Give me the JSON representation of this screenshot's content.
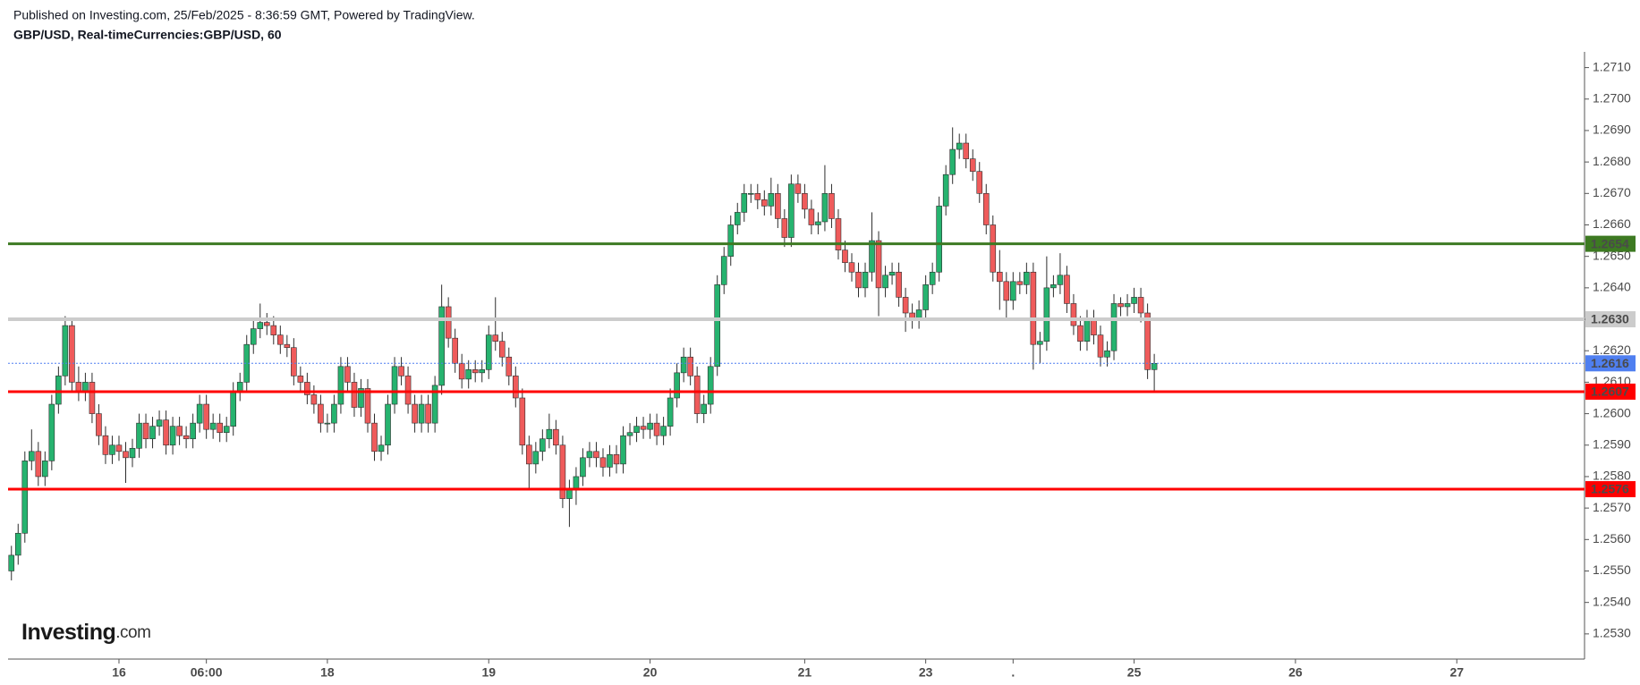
{
  "chart_data": {
    "type": "candlestick",
    "publisher": "Published on Investing.com, 25/Feb/2025 - 8:36:59 GMT, Powered by TradingView.",
    "title": "GBP/USD, Real-timeCurrencies:GBP/USD, 60",
    "logo": {
      "brand": "Investing",
      "suffix": ".com"
    },
    "up_color": "#26b36f",
    "down_color": "#ef5b5b",
    "open": [
      1.255,
      1.2555,
      1.2562,
      1.2585,
      1.2588,
      1.258,
      1.2585,
      1.2603,
      1.2612,
      1.2628,
      1.261,
      1.2607,
      1.261,
      1.26,
      1.2593,
      1.2587,
      1.259,
      1.2588,
      1.2586,
      1.2589,
      1.2597,
      1.2592,
      1.2596,
      1.2598,
      1.259,
      1.2596,
      1.2593,
      1.2592,
      1.2597,
      1.2603,
      1.2595,
      1.2597,
      1.2594,
      1.2596,
      1.2607,
      1.261,
      1.2622,
      1.2627,
      1.2629,
      1.2628,
      1.2625,
      1.2622,
      1.2621,
      1.2612,
      1.261,
      1.2606,
      1.2603,
      1.2597,
      1.2597,
      1.2603,
      1.2615,
      1.261,
      1.2602,
      1.2608,
      1.2597,
      1.2588,
      1.259,
      1.2603,
      1.2615,
      1.2612,
      1.2603,
      1.2597,
      1.2603,
      1.2597,
      1.2609,
      1.2634,
      1.2624,
      1.2616,
      1.2611,
      1.2614,
      1.2613,
      1.2614,
      1.2625,
      1.2623,
      1.2618,
      1.2612,
      1.2605,
      1.259,
      1.2584,
      1.2588,
      1.2592,
      1.2595,
      1.259,
      1.2573,
      1.2576,
      1.258,
      1.2586,
      1.2588,
      1.2586,
      1.2583,
      1.2587,
      1.2584,
      1.2593,
      1.2594,
      1.2596,
      1.2595,
      1.2597,
      1.2593,
      1.2596,
      1.2605,
      1.2613,
      1.2618,
      1.2612,
      1.26,
      1.2603,
      1.2615,
      1.2641,
      1.265,
      1.266,
      1.2664,
      1.267,
      1.267,
      1.2668,
      1.2666,
      1.267,
      1.2662,
      1.2656,
      1.2673,
      1.267,
      1.2665,
      1.266,
      1.2661,
      1.267,
      1.2662,
      1.2652,
      1.2648,
      1.2645,
      1.264,
      1.2645,
      1.2655,
      1.264,
      1.2644,
      1.2645,
      1.2637,
      1.2632,
      1.263,
      1.2633,
      1.2641,
      1.2645,
      1.2666,
      1.2676,
      1.2684,
      1.2686,
      1.2681,
      1.2677,
      1.267,
      1.266,
      1.2645,
      1.2642,
      1.2636,
      1.2642,
      1.2641,
      1.2645,
      1.2622,
      1.2623,
      1.264,
      1.2641,
      1.2644,
      1.2635,
      1.2628,
      1.2623,
      1.263,
      1.2625,
      1.2618,
      1.262,
      1.2635,
      1.2634,
      1.2635,
      1.2637,
      1.2632,
      1.2614
    ],
    "high": [
      1.2558,
      1.2565,
      1.2588,
      1.2595,
      1.2591,
      1.2588,
      1.2606,
      1.2615,
      1.2631,
      1.263,
      1.2615,
      1.2613,
      1.2613,
      1.2603,
      1.2596,
      1.2593,
      1.2593,
      1.2591,
      1.2592,
      1.26,
      1.26,
      1.2599,
      1.2601,
      1.2601,
      1.2599,
      1.2599,
      1.2596,
      1.26,
      1.2606,
      1.2606,
      1.26,
      1.26,
      1.2599,
      1.261,
      1.2613,
      1.2625,
      1.263,
      1.2635,
      1.2632,
      1.2631,
      1.2628,
      1.2625,
      1.2624,
      1.2615,
      1.2613,
      1.2609,
      1.2606,
      1.26,
      1.2606,
      1.2618,
      1.2618,
      1.2613,
      1.2611,
      1.2611,
      1.26,
      1.2593,
      1.2606,
      1.2618,
      1.2618,
      1.2615,
      1.2606,
      1.2606,
      1.2606,
      1.2612,
      1.2641,
      1.2637,
      1.2627,
      1.2619,
      1.2617,
      1.2617,
      1.2617,
      1.2628,
      1.2637,
      1.2626,
      1.2621,
      1.2615,
      1.2608,
      1.2593,
      1.2591,
      1.2595,
      1.26,
      1.2598,
      1.2593,
      1.2579,
      1.2583,
      1.2589,
      1.2591,
      1.2591,
      1.2589,
      1.259,
      1.259,
      1.2596,
      1.2597,
      1.2599,
      1.2599,
      1.26,
      1.26,
      1.2599,
      1.2608,
      1.2616,
      1.2621,
      1.2621,
      1.2615,
      1.2606,
      1.2618,
      1.2644,
      1.2653,
      1.2663,
      1.2667,
      1.2673,
      1.2673,
      1.2673,
      1.2671,
      1.2675,
      1.2673,
      1.2665,
      1.2676,
      1.2676,
      1.2673,
      1.2668,
      1.2664,
      1.2679,
      1.2673,
      1.2665,
      1.2655,
      1.2651,
      1.2648,
      1.2648,
      1.2664,
      1.2658,
      1.2647,
      1.2648,
      1.2648,
      1.264,
      1.2635,
      1.2636,
      1.2644,
      1.2648,
      1.2669,
      1.2679,
      1.2691,
      1.2689,
      1.2689,
      1.2684,
      1.268,
      1.2673,
      1.2663,
      1.2652,
      1.2645,
      1.2645,
      1.2645,
      1.2648,
      1.2648,
      1.2626,
      1.265,
      1.2644,
      1.2651,
      1.2647,
      1.2638,
      1.2631,
      1.2633,
      1.2633,
      1.2628,
      1.2623,
      1.2638,
      1.2637,
      1.2638,
      1.264,
      1.264,
      1.2635,
      1.2619
    ],
    "low": [
      1.2547,
      1.2552,
      1.2559,
      1.2582,
      1.2577,
      1.2577,
      1.2582,
      1.26,
      1.2609,
      1.2607,
      1.2604,
      1.2604,
      1.2597,
      1.259,
      1.2584,
      1.2584,
      1.2585,
      1.2578,
      1.2583,
      1.2586,
      1.2589,
      1.2589,
      1.2593,
      1.2587,
      1.2587,
      1.259,
      1.2589,
      1.2589,
      1.2594,
      1.2592,
      1.2592,
      1.2591,
      1.2591,
      1.2593,
      1.2604,
      1.2607,
      1.2619,
      1.2624,
      1.2625,
      1.2622,
      1.2619,
      1.2618,
      1.2609,
      1.2607,
      1.2603,
      1.26,
      1.2594,
      1.2594,
      1.2594,
      1.26,
      1.2607,
      1.2599,
      1.2599,
      1.2594,
      1.2585,
      1.2585,
      1.2587,
      1.26,
      1.2609,
      1.26,
      1.2594,
      1.2594,
      1.2594,
      1.2594,
      1.2606,
      1.2621,
      1.2613,
      1.2608,
      1.2608,
      1.261,
      1.261,
      1.2611,
      1.262,
      1.2615,
      1.2609,
      1.2602,
      1.2587,
      1.2576,
      1.2581,
      1.2585,
      1.2589,
      1.2587,
      1.257,
      1.2564,
      1.2571,
      1.2577,
      1.2583,
      1.2583,
      1.258,
      1.258,
      1.2581,
      1.2581,
      1.259,
      1.2591,
      1.2592,
      1.2592,
      1.259,
      1.259,
      1.2593,
      1.2602,
      1.261,
      1.2609,
      1.2597,
      1.2597,
      1.26,
      1.2612,
      1.2638,
      1.2647,
      1.2657,
      1.2661,
      1.2667,
      1.2665,
      1.2663,
      1.2663,
      1.2659,
      1.2653,
      1.2653,
      1.2667,
      1.2662,
      1.2657,
      1.2657,
      1.2658,
      1.2659,
      1.2649,
      1.2645,
      1.2642,
      1.2637,
      1.2637,
      1.2642,
      1.2631,
      1.2637,
      1.2641,
      1.2634,
      1.2626,
      1.2627,
      1.2627,
      1.263,
      1.2638,
      1.2642,
      1.2663,
      1.2673,
      1.2681,
      1.2678,
      1.2674,
      1.2667,
      1.2657,
      1.2642,
      1.2633,
      1.263,
      1.2633,
      1.2638,
      1.2638,
      1.2614,
      1.2616,
      1.262,
      1.2637,
      1.2638,
      1.2632,
      1.2625,
      1.262,
      1.262,
      1.2622,
      1.2615,
      1.2615,
      1.2617,
      1.2631,
      1.2631,
      1.2632,
      1.2629,
      1.2611,
      1.2607
    ],
    "close": [
      1.2555,
      1.2562,
      1.2585,
      1.2588,
      1.258,
      1.2585,
      1.2603,
      1.2612,
      1.2628,
      1.261,
      1.2607,
      1.261,
      1.26,
      1.2593,
      1.2587,
      1.259,
      1.2588,
      1.2586,
      1.2589,
      1.2597,
      1.2592,
      1.2596,
      1.2598,
      1.259,
      1.2596,
      1.2593,
      1.2592,
      1.2597,
      1.2603,
      1.2595,
      1.2597,
      1.2594,
      1.2596,
      1.2607,
      1.261,
      1.2622,
      1.2627,
      1.2629,
      1.2628,
      1.2625,
      1.2622,
      1.2621,
      1.2612,
      1.261,
      1.2606,
      1.2603,
      1.2597,
      1.2597,
      1.2603,
      1.2615,
      1.261,
      1.2602,
      1.2608,
      1.2597,
      1.2588,
      1.259,
      1.2603,
      1.2615,
      1.2612,
      1.2603,
      1.2597,
      1.2603,
      1.2597,
      1.2609,
      1.2634,
      1.2624,
      1.2616,
      1.2611,
      1.2614,
      1.2613,
      1.2614,
      1.2625,
      1.2623,
      1.2618,
      1.2612,
      1.2605,
      1.259,
      1.2584,
      1.2588,
      1.2592,
      1.2595,
      1.259,
      1.2573,
      1.2576,
      1.258,
      1.2586,
      1.2588,
      1.2586,
      1.2583,
      1.2587,
      1.2584,
      1.2593,
      1.2594,
      1.2596,
      1.2595,
      1.2597,
      1.2593,
      1.2596,
      1.2605,
      1.2613,
      1.2618,
      1.2612,
      1.26,
      1.2603,
      1.2615,
      1.2641,
      1.265,
      1.266,
      1.2664,
      1.267,
      1.267,
      1.2668,
      1.2666,
      1.267,
      1.2662,
      1.2656,
      1.2673,
      1.267,
      1.2665,
      1.266,
      1.2661,
      1.267,
      1.2662,
      1.2652,
      1.2648,
      1.2645,
      1.264,
      1.2645,
      1.2655,
      1.264,
      1.2644,
      1.2645,
      1.2637,
      1.2632,
      1.263,
      1.2633,
      1.2641,
      1.2645,
      1.2666,
      1.2676,
      1.2684,
      1.2686,
      1.2681,
      1.2677,
      1.267,
      1.266,
      1.2645,
      1.2642,
      1.2636,
      1.2642,
      1.2641,
      1.2645,
      1.2622,
      1.2623,
      1.264,
      1.2641,
      1.2644,
      1.2635,
      1.2628,
      1.2623,
      1.263,
      1.2625,
      1.2618,
      1.262,
      1.2635,
      1.2634,
      1.2635,
      1.2637,
      1.2632,
      1.2614,
      1.2616
    ],
    "xlim": [
      -0.5,
      234
    ],
    "xticks": [
      {
        "value": 16,
        "label": "16"
      },
      {
        "value": 29,
        "label": "06:00"
      },
      {
        "value": 47,
        "label": "18"
      },
      {
        "value": 71,
        "label": "19"
      },
      {
        "value": 95,
        "label": "20"
      },
      {
        "value": 118,
        "label": "21"
      },
      {
        "value": 136,
        "label": "23"
      },
      {
        "value": 149,
        "label": "."
      },
      {
        "value": 167,
        "label": "25"
      },
      {
        "value": 191,
        "label": "26"
      },
      {
        "value": 215,
        "label": "27"
      }
    ],
    "ylim": [
      1.2522,
      1.2715
    ],
    "yticks": [
      {
        "value": 1.253,
        "label": "1.2530"
      },
      {
        "value": 1.254,
        "label": "1.2540"
      },
      {
        "value": 1.255,
        "label": "1.2550"
      },
      {
        "value": 1.256,
        "label": "1.2560"
      },
      {
        "value": 1.257,
        "label": "1.2570"
      },
      {
        "value": 1.258,
        "label": "1.2580"
      },
      {
        "value": 1.259,
        "label": "1.2590"
      },
      {
        "value": 1.26,
        "label": "1.2600"
      },
      {
        "value": 1.261,
        "label": "1.2610"
      },
      {
        "value": 1.262,
        "label": "1.2620"
      },
      {
        "value": 1.263,
        "label": "1.2630"
      },
      {
        "value": 1.264,
        "label": "1.2640"
      },
      {
        "value": 1.265,
        "label": "1.2650"
      },
      {
        "value": 1.266,
        "label": "1.2660"
      },
      {
        "value": 1.267,
        "label": "1.2670"
      },
      {
        "value": 1.268,
        "label": "1.2680"
      },
      {
        "value": 1.269,
        "label": "1.2690"
      },
      {
        "value": 1.27,
        "label": "1.2700"
      },
      {
        "value": 1.271,
        "label": "1.2710"
      }
    ],
    "levels": [
      {
        "value": 1.2654,
        "label": "1.2654",
        "color": "#3d7a22",
        "text_color": "#ffffff",
        "width": 3,
        "dashed": false
      },
      {
        "value": 1.263,
        "label": "1.2630",
        "color": "#cccccc",
        "text_color": "#000000",
        "width": 4,
        "dashed": false
      },
      {
        "value": 1.2616,
        "label": "1.2616",
        "color": "#4f7ff0",
        "text_color": "#ffffff",
        "width": 1,
        "dashed": true
      },
      {
        "value": 1.2607,
        "label": "1.2607",
        "color": "#ff0000",
        "text_color": "#ffffff",
        "width": 3,
        "dashed": false
      },
      {
        "value": 1.2576,
        "label": "1.2576",
        "color": "#ff0000",
        "text_color": "#ffffff",
        "width": 3,
        "dashed": false
      }
    ]
  }
}
